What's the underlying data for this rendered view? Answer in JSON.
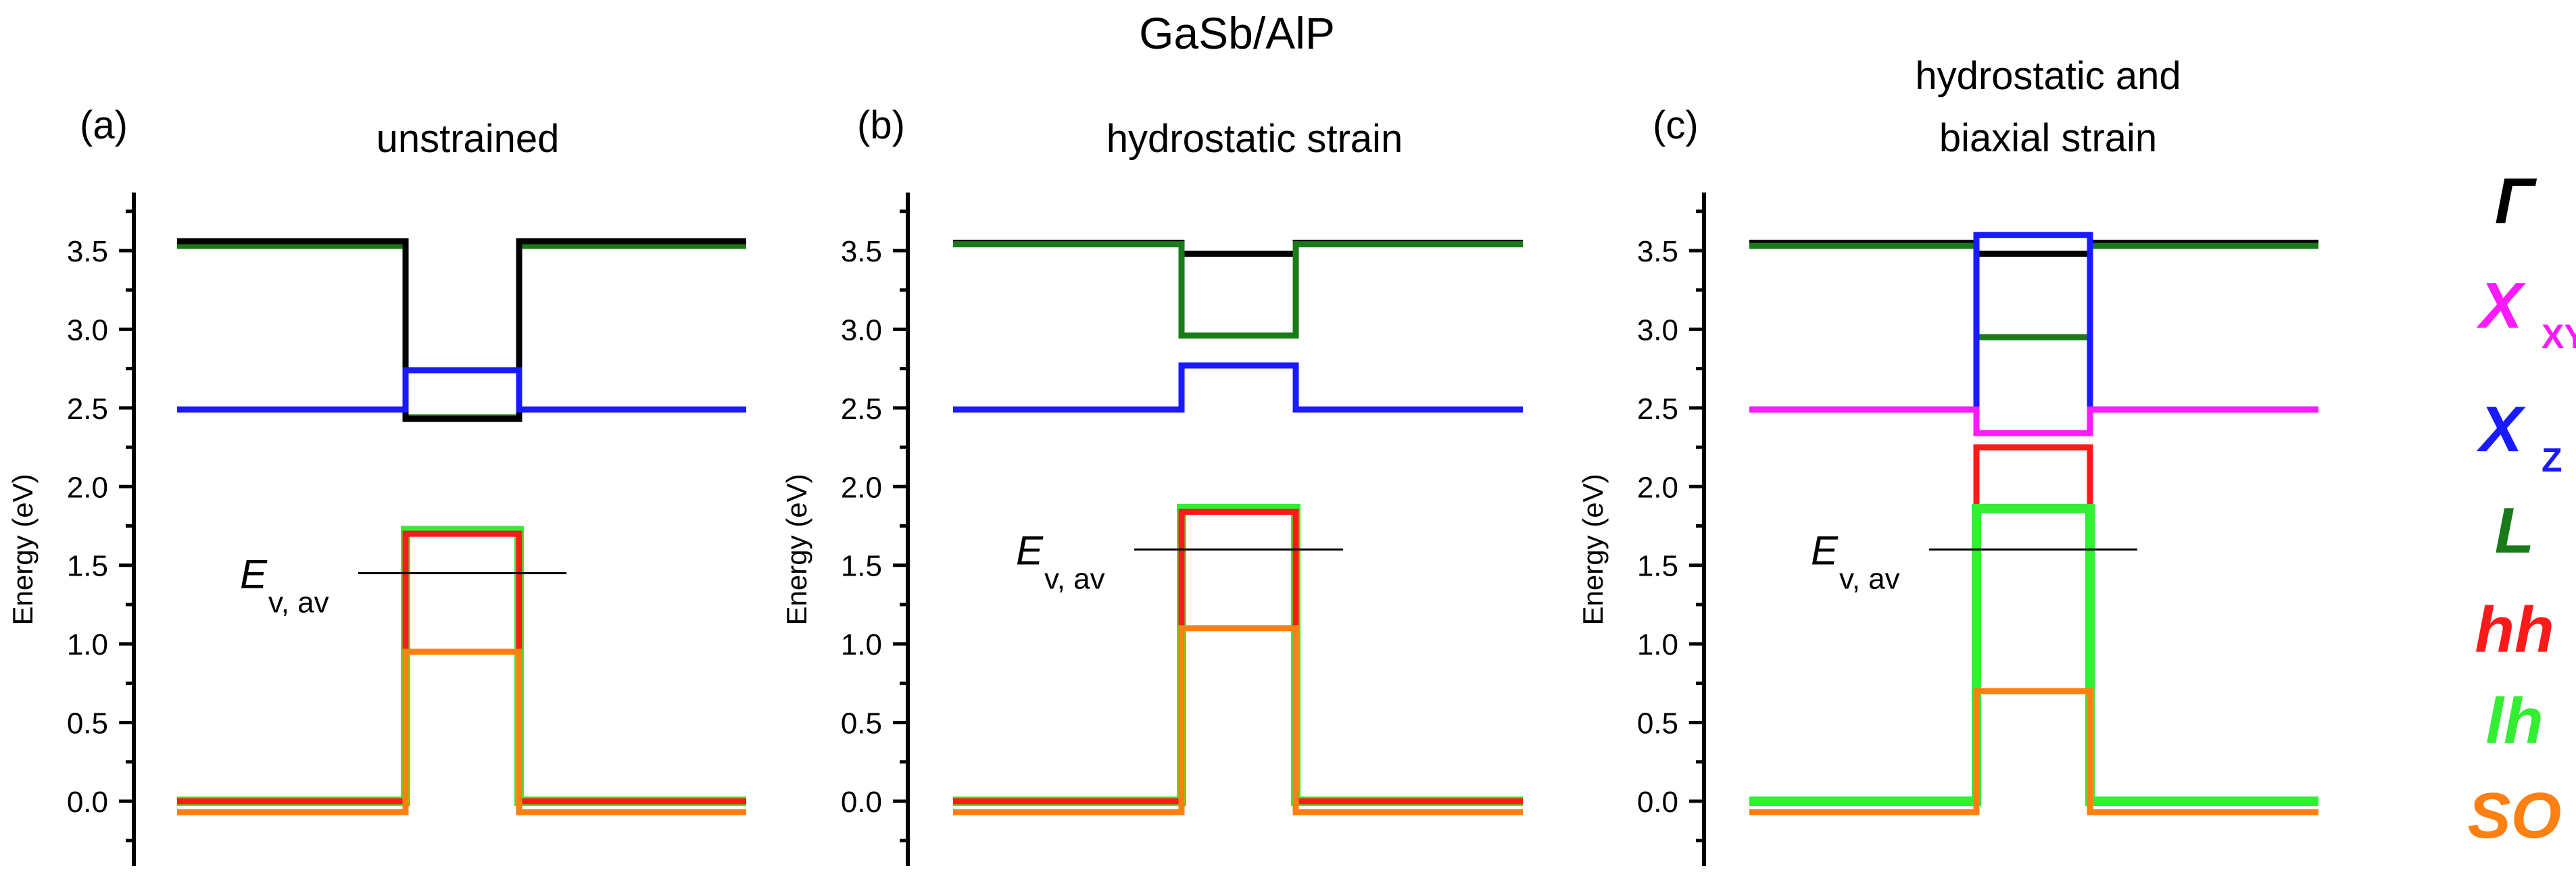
{
  "figure_title": "GaSb/AlP",
  "y_axis_label": "Energy (eV)",
  "ev_label_main": "E",
  "ev_label_sub": "v, av",
  "legend": [
    {
      "label": "Γ",
      "sub": "",
      "color": "#000000"
    },
    {
      "label": "X",
      "sub": "XY",
      "color": "#ff1aff"
    },
    {
      "label": "X",
      "sub": "Z",
      "color": "#1a1aff"
    },
    {
      "label": "L",
      "sub": "",
      "color": "#1a7a1a"
    },
    {
      "label": "hh",
      "sub": "",
      "color": "#ff1a1a"
    },
    {
      "label": "lh",
      "sub": "",
      "color": "#33ee33"
    },
    {
      "label": "SO",
      "sub": "",
      "color": "#ff8010"
    }
  ],
  "chart_data": [
    {
      "type": "line",
      "panel": "(a)",
      "title_lines": [
        "unstrained"
      ],
      "ylim": [
        -0.4,
        3.95
      ],
      "yticks": [
        0.0,
        0.5,
        1.0,
        1.5,
        2.0,
        2.5,
        3.0,
        3.5
      ],
      "x_regions": [
        "AlP",
        "GaSb",
        "AlP"
      ],
      "ev_av": 1.45,
      "series": [
        {
          "name": "L",
          "color": "#1a7a1a",
          "values": [
            3.53,
            2.44,
            3.53
          ]
        },
        {
          "name": "Γ",
          "color": "#000000",
          "values": [
            3.56,
            2.43,
            3.56
          ]
        },
        {
          "name": "X_Z",
          "color": "#1a1aff",
          "values": [
            2.49,
            2.74,
            2.49
          ]
        },
        {
          "name": "lh",
          "color": "#33ee33",
          "values": [
            0.0,
            1.72,
            0.0
          ]
        },
        {
          "name": "hh",
          "color": "#ff1a1a",
          "values": [
            0.0,
            1.7,
            0.0
          ]
        },
        {
          "name": "SO",
          "color": "#ff8010",
          "values": [
            -0.07,
            0.95,
            -0.07
          ]
        }
      ]
    },
    {
      "type": "line",
      "panel": "(b)",
      "title_lines": [
        "hydrostatic strain"
      ],
      "ylim": [
        -0.4,
        3.95
      ],
      "yticks": [
        0.0,
        0.5,
        1.0,
        1.5,
        2.0,
        2.5,
        3.0,
        3.5
      ],
      "x_regions": [
        "AlP",
        "GaSb",
        "AlP"
      ],
      "ev_av": 1.6,
      "series": [
        {
          "name": "Γ",
          "color": "#000000",
          "values": [
            3.55,
            3.48,
            3.55
          ]
        },
        {
          "name": "L",
          "color": "#1a7a1a",
          "values": [
            3.54,
            2.96,
            3.54
          ]
        },
        {
          "name": "X_Z",
          "color": "#1a1aff",
          "values": [
            2.49,
            2.77,
            2.49
          ]
        },
        {
          "name": "lh",
          "color": "#33ee33",
          "values": [
            0.0,
            1.86,
            0.0
          ]
        },
        {
          "name": "hh",
          "color": "#ff1a1a",
          "values": [
            0.0,
            1.84,
            0.0
          ]
        },
        {
          "name": "SO",
          "color": "#ff8010",
          "values": [
            -0.07,
            1.1,
            -0.07
          ]
        }
      ]
    },
    {
      "type": "line",
      "panel": "(c)",
      "title_lines": [
        "hydrostatic and",
        "biaxial strain"
      ],
      "ylim": [
        -0.4,
        3.95
      ],
      "yticks": [
        0.0,
        0.5,
        1.0,
        1.5,
        2.0,
        2.5,
        3.0,
        3.5
      ],
      "x_regions": [
        "AlP",
        "GaSb",
        "AlP"
      ],
      "ev_av": 1.6,
      "series": [
        {
          "name": "Γ",
          "color": "#000000",
          "values": [
            3.55,
            3.48,
            3.55
          ]
        },
        {
          "name": "L",
          "color": "#1a7a1a",
          "values": [
            3.53,
            2.95,
            3.53
          ]
        },
        {
          "name": "X_Z",
          "color": "#1a1aff",
          "values": [
            2.49,
            3.6,
            2.49
          ]
        },
        {
          "name": "X_XY",
          "color": "#ff1aff",
          "values": [
            2.49,
            2.34,
            2.49
          ]
        },
        {
          "name": "hh",
          "color": "#ff1a1a",
          "values": [
            0.0,
            2.25,
            0.0
          ]
        },
        {
          "name": "lh",
          "color": "#33ee33",
          "values": [
            0.0,
            1.86,
            0.0
          ]
        },
        {
          "name": "SO",
          "color": "#ff8010",
          "values": [
            -0.07,
            0.7,
            -0.07
          ]
        }
      ]
    }
  ]
}
